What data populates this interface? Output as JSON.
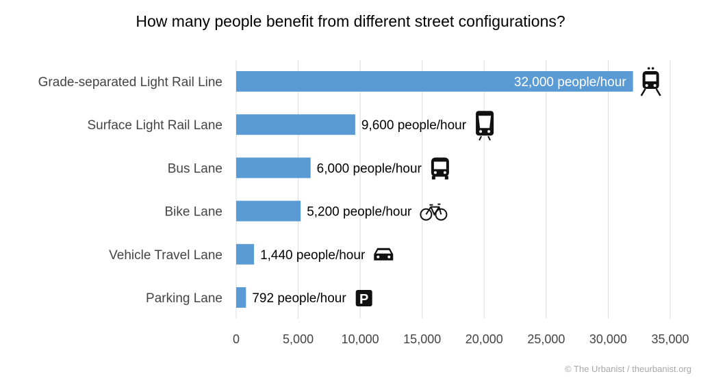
{
  "chart_data": {
    "type": "bar",
    "orientation": "horizontal",
    "title": "How many people benefit from different street configurations?",
    "categories": [
      "Grade-separated Light Rail Line",
      "Surface Light Rail Lane",
      "Bus Lane",
      "Bike Lane",
      "Vehicle Travel Lane",
      "Parking Lane"
    ],
    "values": [
      32000,
      9600,
      6000,
      5200,
      1440,
      792
    ],
    "data_labels": [
      "32,000 people/hour",
      "9,600 people/hour",
      "6,000 people/hour",
      "5,200 people/hour",
      "1,440 people/hour",
      "792 people/hour"
    ],
    "icons": [
      "train-icon",
      "light-rail-icon",
      "bus-icon",
      "bicycle-icon",
      "car-icon",
      "parking-icon"
    ],
    "xlim": [
      0,
      35000
    ],
    "xticks": [
      0,
      5000,
      10000,
      15000,
      20000,
      25000,
      30000,
      35000
    ],
    "xtick_labels": [
      "0",
      "5,000",
      "10,000",
      "15,000",
      "20,000",
      "25,000",
      "30,000",
      "35,000"
    ],
    "xlabel": "",
    "ylabel": "",
    "grid": "vertical",
    "bar_color": "#5b9bd5"
  },
  "credit": "© The Urbanist / theurbanist.org"
}
